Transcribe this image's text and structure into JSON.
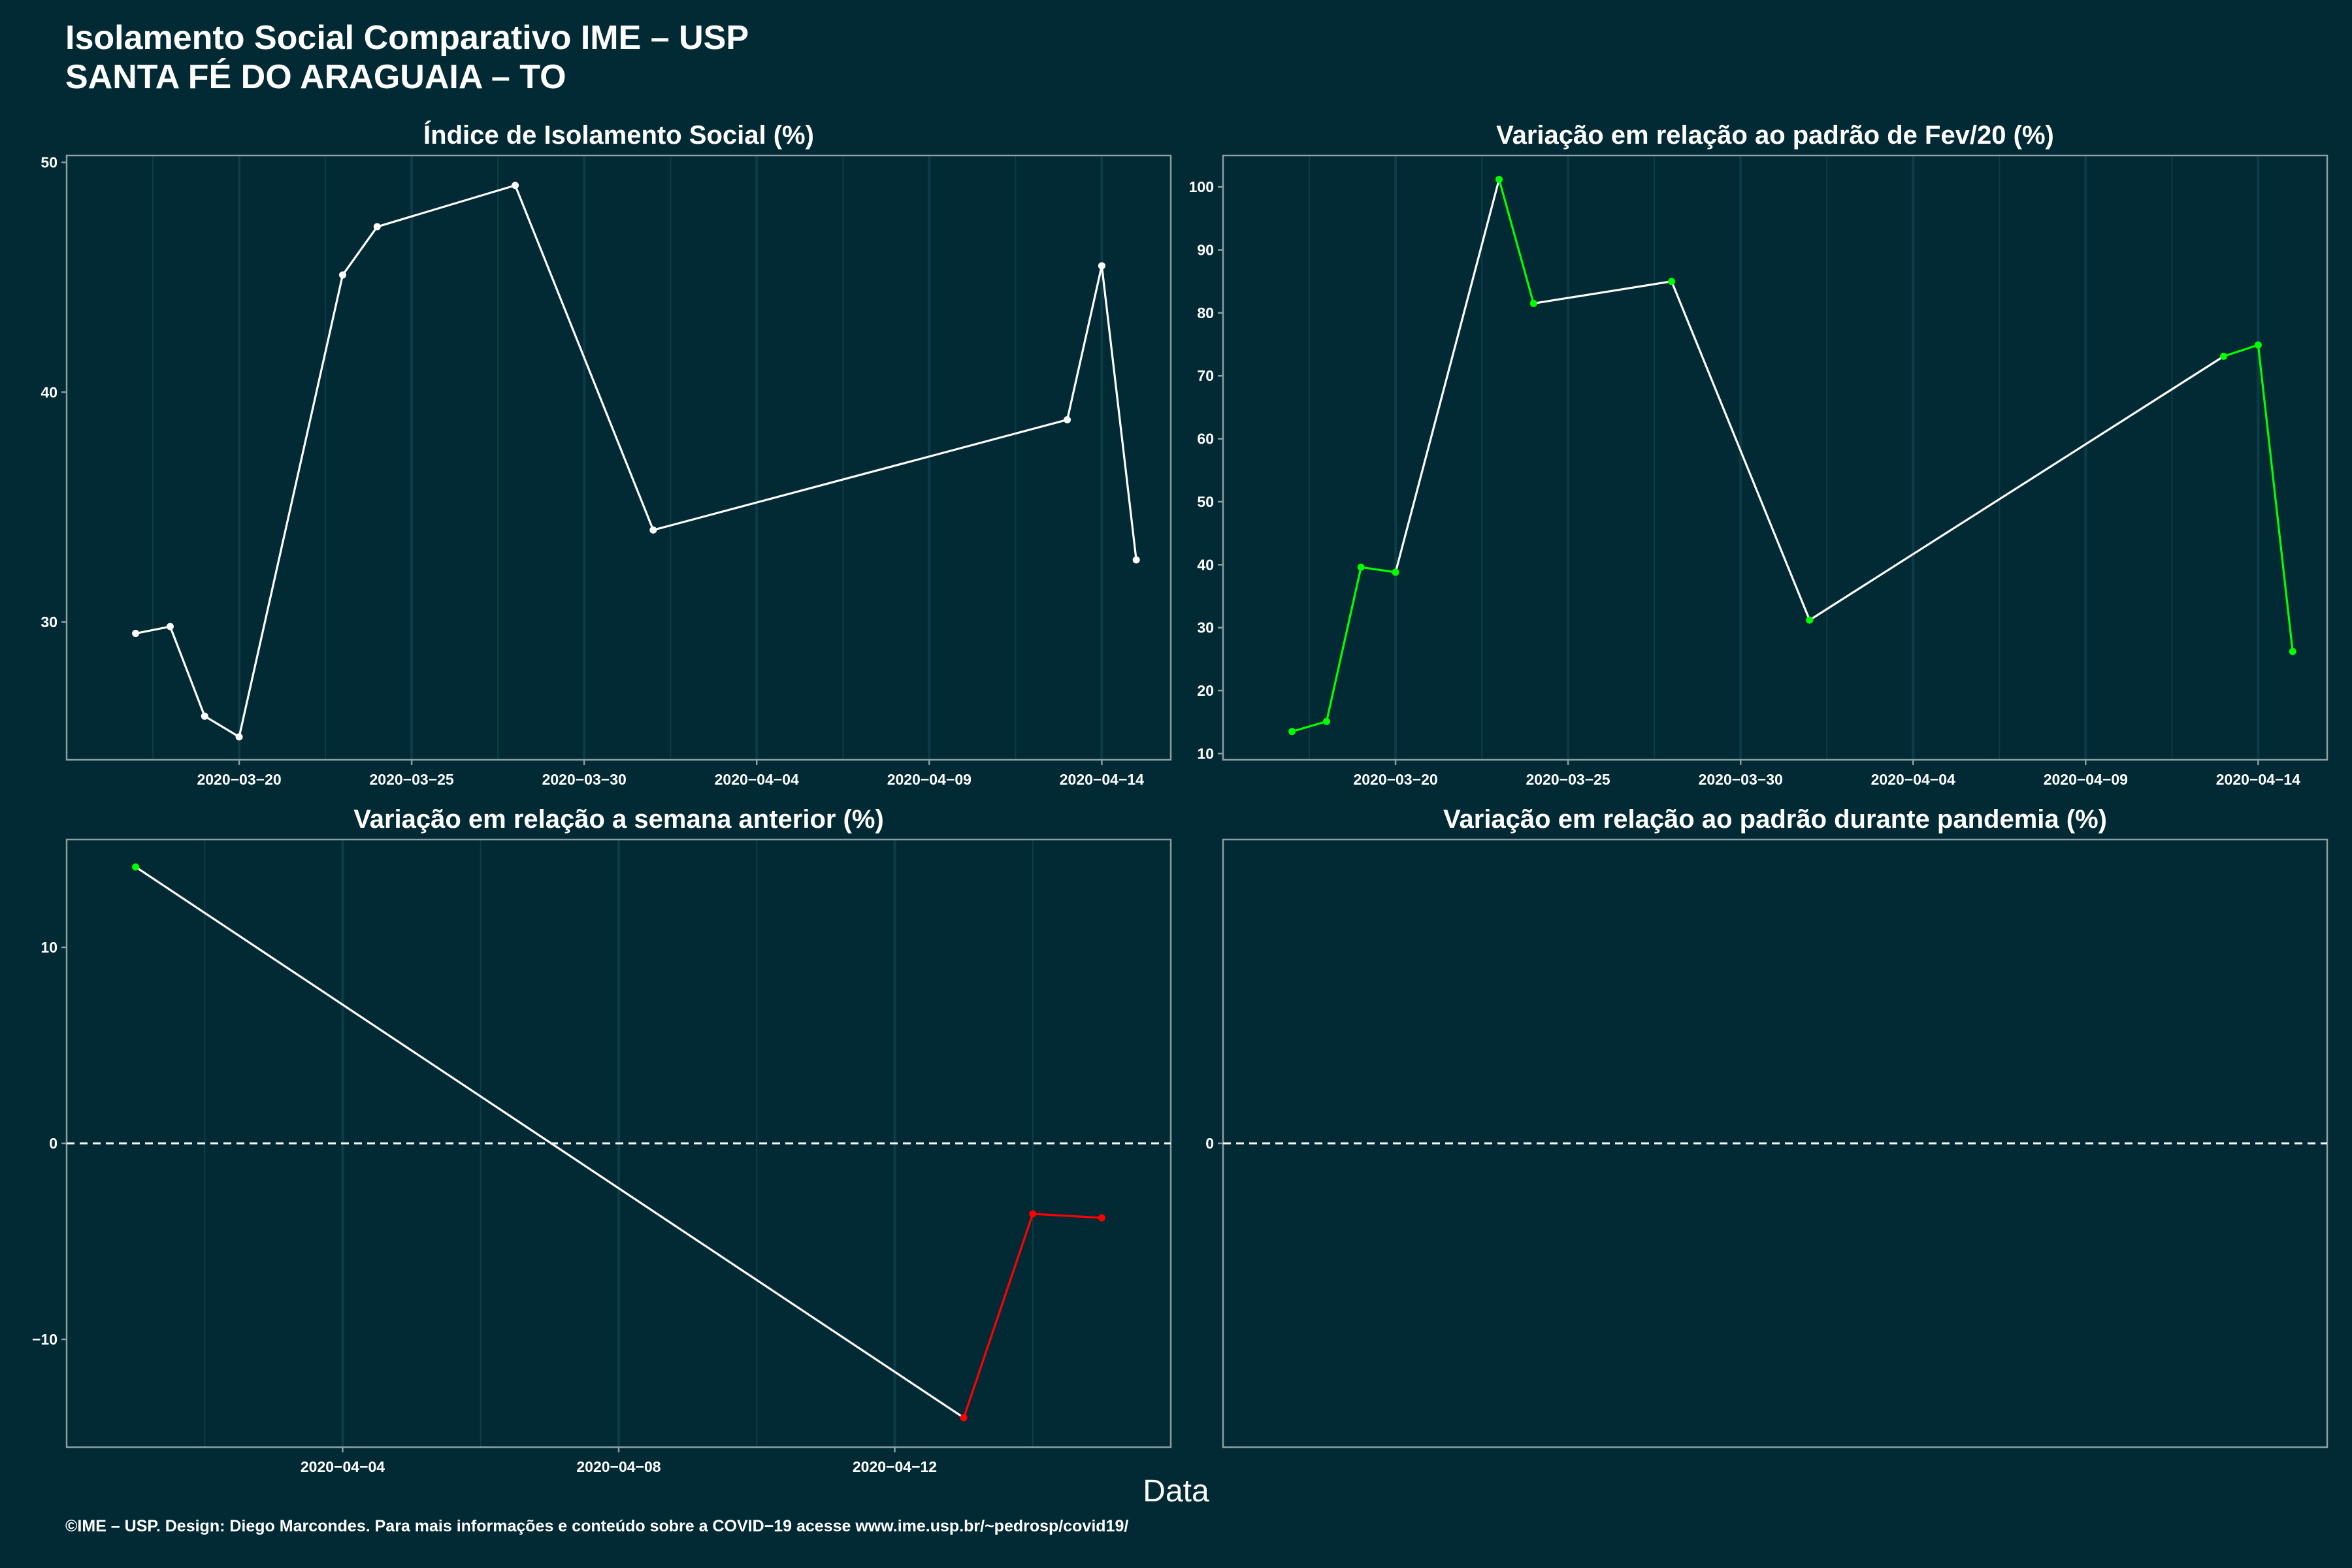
{
  "header": {
    "title_line1": "Isolamento Social Comparativo IME – USP",
    "title_line2": "SANTA FÉ DO ARAGUAIA – TO"
  },
  "x_axis_title": "Data",
  "footer": "©IME – USP. Design: Diego Marcondes. Para mais informações e conteúdo sobre a COVID−19 acesse www.ime.usp.br/~pedrosp/covid19/",
  "colors": {
    "background": "#022a35",
    "line": "#ffffff",
    "positive": "#00ff00",
    "negative": "#ff0000",
    "grid": "#0c3c48",
    "frame": "#8a9ea4"
  },
  "chart_data": [
    {
      "type": "line",
      "title": "Índice de Isolamento Social (%)",
      "xlim": [
        "2020-03-15",
        "2020-04-16"
      ],
      "ylim": [
        24,
        50.3
      ],
      "yticks": [
        30,
        40,
        50
      ],
      "xticks": [
        "2020-03-20",
        "2020-03-25",
        "2020-03-30",
        "2020-04-04",
        "2020-04-09",
        "2020-04-14"
      ],
      "point_coloring": "white",
      "series": [
        {
          "x": [
            "2020-03-17",
            "2020-03-18",
            "2020-03-19",
            "2020-03-20",
            "2020-03-23",
            "2020-03-24",
            "2020-03-28",
            "2020-04-01",
            "2020-04-13",
            "2020-04-14",
            "2020-04-15"
          ],
          "values": [
            29.5,
            29.8,
            25.9,
            25.0,
            45.1,
            47.2,
            49.0,
            34.0,
            38.8,
            45.5,
            32.7
          ]
        }
      ]
    },
    {
      "type": "line",
      "title": "Variação em relação ao padrão de Fev/20 (%)",
      "xlim": [
        "2020-03-15",
        "2020-04-16"
      ],
      "ylim": [
        9,
        105
      ],
      "yticks": [
        10,
        20,
        30,
        40,
        50,
        60,
        70,
        80,
        90,
        100
      ],
      "xticks": [
        "2020-03-20",
        "2020-03-25",
        "2020-03-30",
        "2020-04-04",
        "2020-04-09",
        "2020-04-14"
      ],
      "point_coloring": "green-if-consecutive",
      "series": [
        {
          "x": [
            "2020-03-17",
            "2020-03-18",
            "2020-03-19",
            "2020-03-20",
            "2020-03-23",
            "2020-03-24",
            "2020-03-28",
            "2020-04-01",
            "2020-04-13",
            "2020-04-14",
            "2020-04-15"
          ],
          "values": [
            13.5,
            15.1,
            39.6,
            38.8,
            101.2,
            81.5,
            85.0,
            31.2,
            73.1,
            74.9,
            26.2
          ]
        }
      ]
    },
    {
      "type": "line",
      "title": "Variação em relação a semana anterior (%)",
      "xlim": [
        "2020-03-31",
        "2020-04-16"
      ],
      "ylim": [
        -15.5,
        15.5
      ],
      "yticks": [
        -10,
        0,
        10
      ],
      "xticks": [
        "2020-04-04",
        "2020-04-08",
        "2020-04-12"
      ],
      "reference_line": 0,
      "point_coloring": "sign-if-consecutive",
      "series": [
        {
          "x": [
            "2020-04-01",
            "2020-04-13",
            "2020-04-14",
            "2020-04-15"
          ],
          "values": [
            14.1,
            -14.0,
            -3.6,
            -3.8
          ]
        }
      ]
    },
    {
      "type": "line",
      "title": "Variação em relação ao padrão durante pandemia (%)",
      "ylim": [
        -15.5,
        15.5
      ],
      "yticks": [
        0
      ],
      "xticks": [],
      "reference_line": 0,
      "series": []
    }
  ]
}
